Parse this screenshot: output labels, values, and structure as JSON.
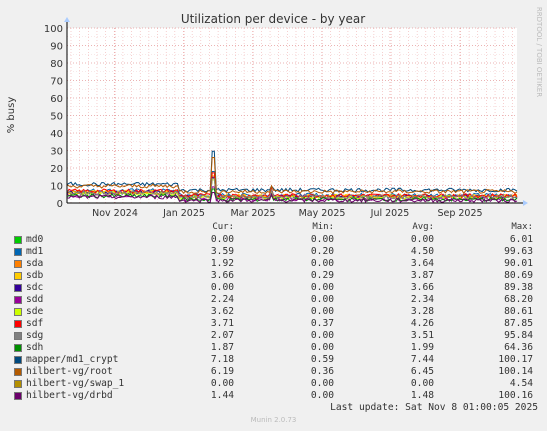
{
  "chart_data": {
    "type": "line",
    "title": "Utilization per device - by year",
    "ylabel": "% busy",
    "xlabel": "",
    "ylim": [
      0,
      100
    ],
    "yticks": [
      0,
      10,
      20,
      30,
      40,
      50,
      60,
      70,
      80,
      90,
      100
    ],
    "x_ticks": [
      "Nov 2024",
      "Jan 2025",
      "Mar 2025",
      "May 2025",
      "Jul 2025",
      "Sep 2025"
    ],
    "grid": true,
    "watermark": "RRDTOOL / TOBI OETIKER",
    "series": [
      {
        "name": "md0",
        "color": "#00cc00",
        "cur": "0.00",
        "min": "0.00",
        "avg": "0.00",
        "max": "6.01",
        "level": 0.0
      },
      {
        "name": "md1",
        "color": "#0066b3",
        "cur": "3.59",
        "min": "0.20",
        "avg": "4.50",
        "max": "99.63",
        "level": 4.5
      },
      {
        "name": "sda",
        "color": "#ff8000",
        "cur": "1.92",
        "min": "0.00",
        "avg": "3.64",
        "max": "90.01",
        "level": 3.6
      },
      {
        "name": "sdb",
        "color": "#ffcc00",
        "cur": "3.66",
        "min": "0.29",
        "avg": "3.87",
        "max": "80.69",
        "level": 3.9
      },
      {
        "name": "sdc",
        "color": "#330099",
        "cur": "0.00",
        "min": "0.00",
        "avg": "3.66",
        "max": "89.38",
        "level": 3.7
      },
      {
        "name": "sdd",
        "color": "#990099",
        "cur": "2.24",
        "min": "0.00",
        "avg": "2.34",
        "max": "68.20",
        "level": 2.3
      },
      {
        "name": "sde",
        "color": "#ccff00",
        "cur": "3.62",
        "min": "0.00",
        "avg": "3.28",
        "max": "80.61",
        "level": 3.3
      },
      {
        "name": "sdf",
        "color": "#ff0000",
        "cur": "3.71",
        "min": "0.37",
        "avg": "4.26",
        "max": "87.85",
        "level": 4.3
      },
      {
        "name": "sdg",
        "color": "#808080",
        "cur": "2.07",
        "min": "0.00",
        "avg": "3.51",
        "max": "95.84",
        "level": 3.5
      },
      {
        "name": "sdh",
        "color": "#008f00",
        "cur": "1.87",
        "min": "0.00",
        "avg": "1.99",
        "max": "64.36",
        "level": 2.0
      },
      {
        "name": "mapper/md1_crypt",
        "color": "#00487d",
        "cur": "7.18",
        "min": "0.59",
        "avg": "7.44",
        "max": "100.17",
        "level": 7.4
      },
      {
        "name": "hilbert-vg/root",
        "color": "#b35a00",
        "cur": "6.19",
        "min": "0.36",
        "avg": "6.45",
        "max": "100.14",
        "level": 6.5
      },
      {
        "name": "hilbert-vg/swap_1",
        "color": "#b38f00",
        "cur": "0.00",
        "min": "0.00",
        "avg": "0.00",
        "max": "4.54",
        "level": 0.0
      },
      {
        "name": "hilbert-vg/drbd",
        "color": "#6b006b",
        "cur": "1.44",
        "min": "0.00",
        "avg": "1.48",
        "max": "100.16",
        "level": 1.5
      }
    ]
  },
  "legend_headers": {
    "cur": "Cur:",
    "min": "Min:",
    "avg": "Avg:",
    "max": "Max:"
  },
  "footer": {
    "last_update": "Last update: Sat Nov  8 01:00:05 2025",
    "munin": "Munin 2.0.73"
  }
}
